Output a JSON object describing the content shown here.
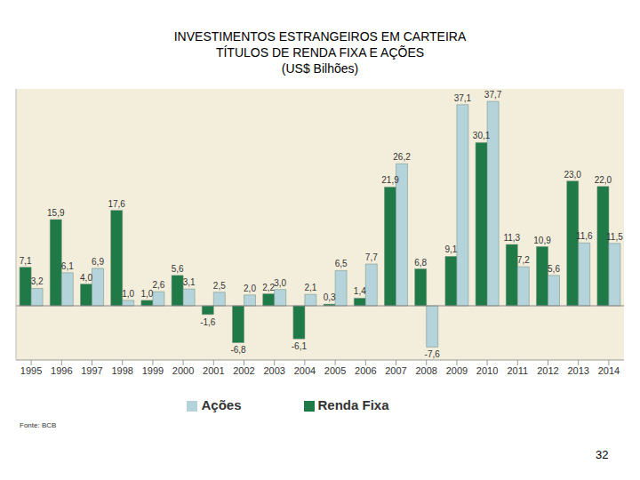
{
  "chart_data": {
    "type": "bar",
    "title": "INVESTIMENTOS ESTRANGEIROS EM CARTEIRA",
    "subtitle": "TÍTULOS DE RENDA FIXA E AÇÕES",
    "unit_label": "(US$ Bilhões)",
    "categories": [
      "1995",
      "1996",
      "1997",
      "1998",
      "1999",
      "2000",
      "2001",
      "2002",
      "2003",
      "2004",
      "2005",
      "2006",
      "2007",
      "2008",
      "2009",
      "2010",
      "2011",
      "2012",
      "2013",
      "2014"
    ],
    "series": [
      {
        "name": "Renda Fixa",
        "color": "#1f7a47",
        "values": [
          7.1,
          15.9,
          4.0,
          17.6,
          1.0,
          5.6,
          -1.6,
          -6.8,
          2.2,
          -6.1,
          0.3,
          1.4,
          21.9,
          6.8,
          9.1,
          30.1,
          11.3,
          10.9,
          23.0,
          22.0
        ],
        "value_labels": [
          "7,1",
          "15,9",
          "4,0",
          "17,6",
          "1,0",
          "5,6",
          "-1,6",
          "-6,8",
          "2,2",
          "-6,1",
          "0,3",
          "1,4",
          "21,9",
          "6,8",
          "9,1",
          "30,1",
          "11,3",
          "10,9",
          "23,0",
          "22,0"
        ]
      },
      {
        "name": "Ações",
        "color": "#b5d3db",
        "values": [
          3.2,
          6.1,
          6.9,
          1.0,
          2.6,
          3.1,
          2.5,
          2.0,
          3.0,
          2.1,
          6.5,
          7.7,
          26.2,
          -7.6,
          37.1,
          37.7,
          7.2,
          5.6,
          11.6,
          11.5
        ],
        "value_labels": [
          "3,2",
          "6,1",
          "6,9",
          "1,0",
          "2,6",
          "3,1",
          "2,5",
          "2,0",
          "3,0",
          "2,1",
          "6,5",
          "7,7",
          "26,2",
          "-7,6",
          "37,1",
          "37,7",
          "7,2",
          "5,6",
          "11,6",
          "11,5"
        ]
      }
    ],
    "ylim": [
      -10,
      40
    ],
    "data_labels": true,
    "tick_labels": "x",
    "legend": "bottom"
  },
  "source": "Fonte: BCB",
  "page_number": "32"
}
